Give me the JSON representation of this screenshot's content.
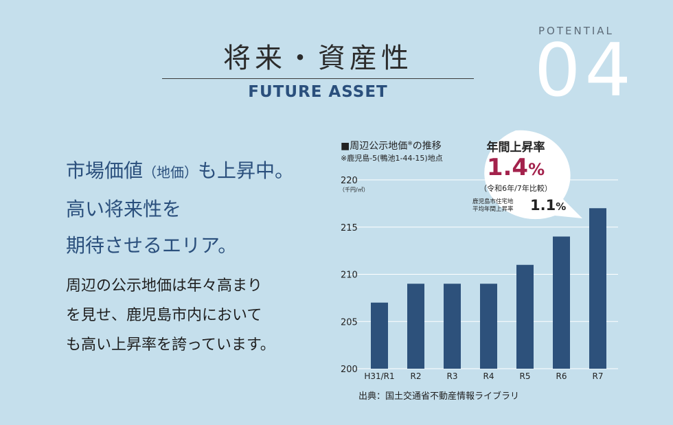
{
  "header": {
    "title": "将来・資産性",
    "subtitle": "FUTURE ASSET",
    "potential_label": "POTENTIAL",
    "potential_number": "04"
  },
  "headline": {
    "line1_a": "市場価値",
    "line1_paren": "（地価）",
    "line1_b": "も上昇中。",
    "line2": "高い将来性を",
    "line3": "期待させるエリア。"
  },
  "body": {
    "line1": "周辺の公示地価は年々高まり",
    "line2": "を見せ、鹿児島市内において",
    "line3": "も高い上昇率を誇っています。"
  },
  "chart_caption": {
    "title": "■周辺公示地価",
    "title_mark": "※",
    "title_end": "の推移",
    "note": "※鹿児島-5(鴨池1-44-15)地点"
  },
  "callout": {
    "title": "年間上昇率",
    "value": "1.4",
    "value_unit": "%",
    "sub": "（令和6年/7年比較）",
    "city_label_1": "鹿児島市住宅地",
    "city_label_2": "平均年間上昇率",
    "city_value": "1.1",
    "city_unit": "%",
    "value_color": "#a3224c"
  },
  "source": "出典：国土交通省不動産情報ライブラリ",
  "colors": {
    "background": "#c5dfec",
    "bar": "#2d517b",
    "accent": "#2a4f7c"
  },
  "chart_data": {
    "type": "bar",
    "categories": [
      "H31/R1",
      "R2",
      "R3",
      "R4",
      "R5",
      "R6",
      "R7"
    ],
    "values": [
      207,
      209,
      209,
      209,
      211,
      214,
      217
    ],
    "ylim": [
      200,
      220
    ],
    "yticks": [
      200,
      205,
      210,
      215,
      220
    ],
    "unit_label": "（千円/㎡）",
    "grid": true
  }
}
